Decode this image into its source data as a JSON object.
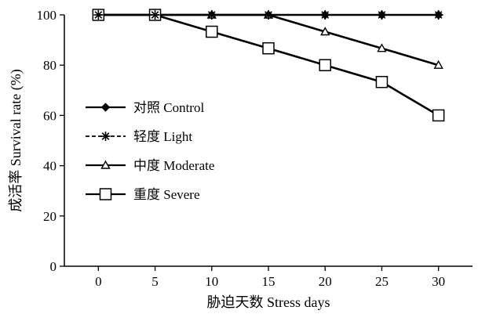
{
  "chart_data": {
    "type": "line",
    "xlabel": "胁迫天数 Stress days",
    "ylabel": "成活率 Survival rate (%)",
    "x": [
      0,
      5,
      10,
      15,
      20,
      25,
      30
    ],
    "xlim": [
      -3,
      33
    ],
    "ylim": [
      0,
      100
    ],
    "xticks": [
      "0",
      "5",
      "10",
      "15",
      "20",
      "25",
      "30"
    ],
    "yticks": [
      "0",
      "20",
      "40",
      "60",
      "80",
      "100"
    ],
    "grid": false,
    "legend_position": "center-left",
    "series": [
      {
        "name": "对照 Control",
        "marker": "diamond-filled",
        "line": "solid",
        "values": [
          100,
          100,
          100,
          100,
          100,
          100,
          100
        ]
      },
      {
        "name": "轻度 Light",
        "marker": "asterisk",
        "line": "dashed",
        "values": [
          100,
          100,
          100,
          100,
          100,
          100,
          100
        ]
      },
      {
        "name": "中度 Moderate",
        "marker": "triangle-open",
        "line": "solid",
        "values": [
          100,
          100,
          100,
          100,
          93.3,
          86.7,
          80
        ]
      },
      {
        "name": "重度 Severe",
        "marker": "square-open",
        "line": "solid",
        "values": [
          100,
          100,
          93.3,
          86.7,
          80,
          73.3,
          60
        ]
      }
    ]
  }
}
